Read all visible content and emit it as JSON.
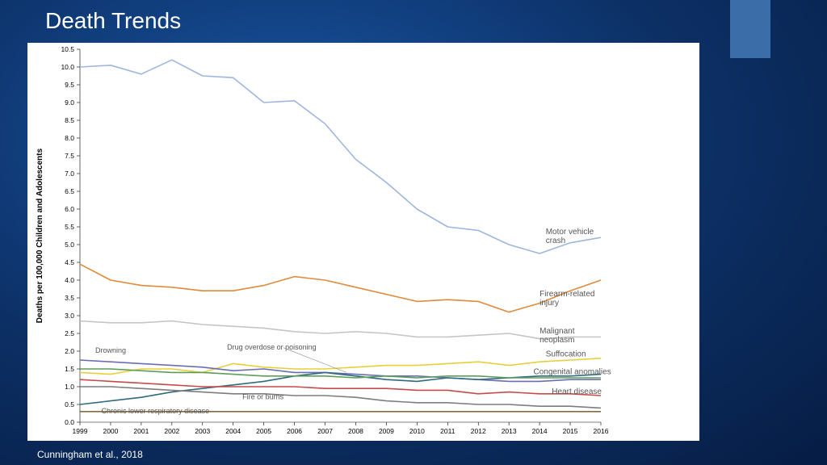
{
  "slide": {
    "title": "Death Trends",
    "citation": "Cunningham et al., 2018",
    "background_gradient": [
      "#1856a5",
      "#0c2f64",
      "#061d44"
    ],
    "accent_color": "#3b6da8"
  },
  "chart": {
    "type": "line",
    "ylabel": "Deaths per 100,000 Children and Adolescents",
    "background_color": "#ffffff",
    "x": {
      "years": [
        1999,
        2000,
        2001,
        2002,
        2003,
        2004,
        2005,
        2006,
        2007,
        2008,
        2009,
        2010,
        2011,
        2012,
        2013,
        2014,
        2015,
        2016
      ]
    },
    "y": {
      "min": 0.0,
      "max": 10.5,
      "tick_step": 0.5
    },
    "axis_fontsize": 8.5,
    "ylabel_fontsize": 10,
    "line_width": 1.6,
    "series": [
      {
        "name": "Motor vehicle crash",
        "color": "#9fb6de",
        "values": [
          10.0,
          10.05,
          9.8,
          10.2,
          9.75,
          9.7,
          9.0,
          9.05,
          8.4,
          7.4,
          6.75,
          6.0,
          5.5,
          5.4,
          5.0,
          4.75,
          5.05,
          5.2
        ],
        "label_x": 2014.2,
        "label_y": 5.3,
        "label_align": "start"
      },
      {
        "name": "Firearm-related injury",
        "color": "#e08a3a",
        "values": [
          4.45,
          4.0,
          3.85,
          3.8,
          3.7,
          3.7,
          3.85,
          4.1,
          4.0,
          3.8,
          3.6,
          3.4,
          3.45,
          3.4,
          3.1,
          3.35,
          3.7,
          4.0
        ],
        "label_x": 2014.0,
        "label_y": 3.55,
        "label_align": "start"
      },
      {
        "name": "Malignant neoplasm",
        "color": "#c5c5c5",
        "values": [
          2.85,
          2.8,
          2.8,
          2.85,
          2.75,
          2.7,
          2.65,
          2.55,
          2.5,
          2.55,
          2.5,
          2.4,
          2.4,
          2.45,
          2.5,
          2.35,
          2.4,
          2.4
        ],
        "label_x": 2014.0,
        "label_y": 2.5,
        "label_align": "start"
      },
      {
        "name": "Suffocation",
        "color": "#e7cf3a",
        "values": [
          1.4,
          1.35,
          1.5,
          1.5,
          1.4,
          1.65,
          1.55,
          1.5,
          1.5,
          1.55,
          1.6,
          1.6,
          1.65,
          1.7,
          1.6,
          1.7,
          1.75,
          1.8
        ],
        "label_x": 2014.2,
        "label_y": 1.85,
        "label_align": "start"
      },
      {
        "name": "Drowning",
        "color": "#6a6db3",
        "values": [
          1.75,
          1.7,
          1.65,
          1.6,
          1.55,
          1.45,
          1.5,
          1.4,
          1.4,
          1.35,
          1.3,
          1.3,
          1.25,
          1.2,
          1.15,
          1.15,
          1.2,
          1.2
        ],
        "inline_label_x": 1999.5,
        "inline_label_y": 1.95
      },
      {
        "name": "Drug overdose or poisoning",
        "color": "#2f6a7d",
        "values": [
          0.5,
          0.6,
          0.7,
          0.85,
          0.95,
          1.05,
          1.15,
          1.3,
          1.4,
          1.3,
          1.2,
          1.15,
          1.25,
          1.2,
          1.25,
          1.3,
          1.3,
          1.35
        ],
        "inline_label_x": 2003.8,
        "inline_label_y": 2.05,
        "pointer_to_x": 2007.7,
        "pointer_to_y": 1.4
      },
      {
        "name": "Congenital anomalies",
        "color": "#5a9e5a",
        "values": [
          1.5,
          1.5,
          1.45,
          1.4,
          1.4,
          1.35,
          1.3,
          1.3,
          1.3,
          1.25,
          1.3,
          1.25,
          1.3,
          1.3,
          1.25,
          1.25,
          1.25,
          1.25
        ],
        "label_x": 2013.8,
        "label_y": 1.35,
        "label_align": "start"
      },
      {
        "name": "Heart disease",
        "color": "#c94a4a",
        "values": [
          1.2,
          1.15,
          1.1,
          1.05,
          1.0,
          1.0,
          1.0,
          1.0,
          0.95,
          0.95,
          0.95,
          0.9,
          0.9,
          0.8,
          0.85,
          0.8,
          0.8,
          0.75
        ],
        "label_x": 2014.4,
        "label_y": 0.8,
        "label_align": "start"
      },
      {
        "name": "Fire or burns",
        "color": "#7d7d7d",
        "values": [
          1.0,
          1.0,
          0.95,
          0.9,
          0.85,
          0.8,
          0.8,
          0.75,
          0.75,
          0.7,
          0.6,
          0.55,
          0.55,
          0.5,
          0.5,
          0.45,
          0.45,
          0.4
        ],
        "inline_label_x": 2004.3,
        "inline_label_y": 0.65
      },
      {
        "name": "Chronic lower respiratory disease",
        "color": "#8a6a3a",
        "values": [
          0.3,
          0.3,
          0.3,
          0.3,
          0.3,
          0.3,
          0.3,
          0.3,
          0.3,
          0.3,
          0.3,
          0.3,
          0.3,
          0.3,
          0.3,
          0.3,
          0.3,
          0.3
        ],
        "inline_label_x": 1999.7,
        "inline_label_y": 0.25
      }
    ]
  }
}
